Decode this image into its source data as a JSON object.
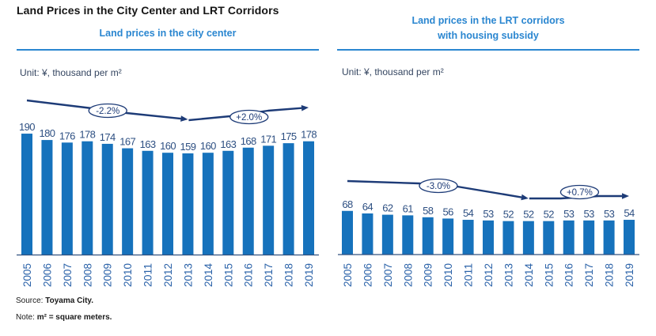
{
  "title": "Land Prices in the City Center and LRT Corridors",
  "panels": [
    {
      "subtitle": [
        "Land prices in the city center"
      ],
      "unit": "Unit: ¥, thousand per m²"
    },
    {
      "subtitle": [
        "Land prices in the LRT corridors",
        "with housing subsidy"
      ],
      "unit": "Unit: ¥, thousand per m²"
    }
  ],
  "footer": {
    "source_label": "Source:",
    "source_value": "Toyama City.",
    "note_label": "Note:",
    "note_value": "m² = square meters."
  },
  "colors": {
    "accent": "#2a86d0",
    "bar": "#1672bc",
    "trend": "#1d3b77"
  },
  "chart_data": [
    {
      "type": "bar",
      "title": "Land prices in the city center",
      "unit": "¥, thousand per m²",
      "xlabel": "",
      "ylabel": "",
      "grid": false,
      "categories": [
        "2005",
        "2006",
        "2007",
        "2008",
        "2009",
        "2010",
        "2011",
        "2012",
        "2013",
        "2014",
        "2015",
        "2016",
        "2017",
        "2018",
        "2019"
      ],
      "values": [
        190,
        180,
        176,
        178,
        174,
        167,
        163,
        160,
        159,
        160,
        163,
        168,
        171,
        175,
        178
      ],
      "annotations": [
        {
          "label": "-2.2%",
          "from": "2005",
          "to": "2013"
        },
        {
          "label": "+2.0%",
          "from": "2013",
          "to": "2019"
        }
      ],
      "bar_color": "#1672bc",
      "trend_color": "#1d3b77",
      "axis_color": "#30507f"
    },
    {
      "type": "bar",
      "title": "Land prices in the LRT corridors with housing subsidy",
      "unit": "¥, thousand per m²",
      "xlabel": "",
      "ylabel": "",
      "grid": false,
      "categories": [
        "2005",
        "2006",
        "2007",
        "2008",
        "2009",
        "2010",
        "2011",
        "2012",
        "2013",
        "2014",
        "2015",
        "2016",
        "2017",
        "2018",
        "2019"
      ],
      "values": [
        68,
        64,
        62,
        61,
        58,
        56,
        54,
        53,
        52,
        52,
        52,
        53,
        53,
        53,
        54
      ],
      "annotations": [
        {
          "label": "-3.0%",
          "from": "2005",
          "to": "2014"
        },
        {
          "label": "+0.7%",
          "from": "2014",
          "to": "2019"
        }
      ],
      "bar_color": "#1672bc",
      "trend_color": "#1d3b77",
      "axis_color": "#30507f"
    }
  ]
}
